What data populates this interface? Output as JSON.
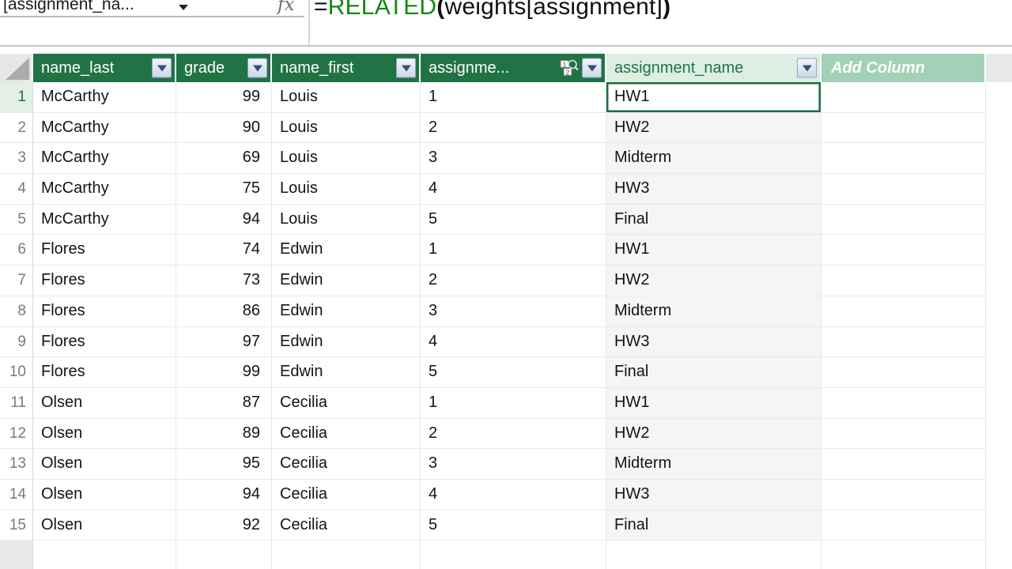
{
  "app": "Power Pivot data view",
  "colors": {
    "header_green": "#217346",
    "selected_header_bg": "#ddeee3",
    "add_column_green": "#a2d1b6",
    "function_name_green": "#108a10",
    "selection_border_green": "#1c6c40",
    "selected_rownum_bg": "#e2f0e8"
  },
  "formula_bar": {
    "name_box_value": "[assignment_na...",
    "fx_label": "fx",
    "formula": {
      "equals": "=",
      "function_name": "RELATED",
      "open_paren": "(",
      "argument": "weights[assignment]",
      "close_paren": ")"
    }
  },
  "table": {
    "columns": [
      {
        "label": "name_last",
        "has_filter": true
      },
      {
        "label": "grade",
        "has_filter": true
      },
      {
        "label": "name_first",
        "has_filter": true
      },
      {
        "label": "assignme...",
        "has_filter": true,
        "has_relationship_icon": true
      },
      {
        "label": "assignment_name",
        "has_filter": true,
        "selected": true
      },
      {
        "label": "Add Column",
        "has_filter": false
      }
    ],
    "icons": {
      "select_all": "select-all-triangle",
      "filter": "filter-dropdown-arrow",
      "relationship": "relationship-lookup-magnifier"
    },
    "selected": {
      "row_index": 0,
      "row_number": "1",
      "column": "assignment_name",
      "value": "HW1"
    },
    "rows": [
      {
        "num": "1",
        "name_last": "McCarthy",
        "grade": "99",
        "name_first": "Louis",
        "assignment": "1",
        "assignment_name": "HW1"
      },
      {
        "num": "2",
        "name_last": "McCarthy",
        "grade": "90",
        "name_first": "Louis",
        "assignment": "2",
        "assignment_name": "HW2"
      },
      {
        "num": "3",
        "name_last": "McCarthy",
        "grade": "69",
        "name_first": "Louis",
        "assignment": "3",
        "assignment_name": "Midterm"
      },
      {
        "num": "4",
        "name_last": "McCarthy",
        "grade": "75",
        "name_first": "Louis",
        "assignment": "4",
        "assignment_name": "HW3"
      },
      {
        "num": "5",
        "name_last": "McCarthy",
        "grade": "94",
        "name_first": "Louis",
        "assignment": "5",
        "assignment_name": "Final"
      },
      {
        "num": "6",
        "name_last": "Flores",
        "grade": "74",
        "name_first": "Edwin",
        "assignment": "1",
        "assignment_name": "HW1"
      },
      {
        "num": "7",
        "name_last": "Flores",
        "grade": "73",
        "name_first": "Edwin",
        "assignment": "2",
        "assignment_name": "HW2"
      },
      {
        "num": "8",
        "name_last": "Flores",
        "grade": "86",
        "name_first": "Edwin",
        "assignment": "3",
        "assignment_name": "Midterm"
      },
      {
        "num": "9",
        "name_last": "Flores",
        "grade": "97",
        "name_first": "Edwin",
        "assignment": "4",
        "assignment_name": "HW3"
      },
      {
        "num": "10",
        "name_last": "Flores",
        "grade": "99",
        "name_first": "Edwin",
        "assignment": "5",
        "assignment_name": "Final"
      },
      {
        "num": "11",
        "name_last": "Olsen",
        "grade": "87",
        "name_first": "Cecilia",
        "assignment": "1",
        "assignment_name": "HW1"
      },
      {
        "num": "12",
        "name_last": "Olsen",
        "grade": "89",
        "name_first": "Cecilia",
        "assignment": "2",
        "assignment_name": "HW2"
      },
      {
        "num": "13",
        "name_last": "Olsen",
        "grade": "95",
        "name_first": "Cecilia",
        "assignment": "3",
        "assignment_name": "Midterm"
      },
      {
        "num": "14",
        "name_last": "Olsen",
        "grade": "94",
        "name_first": "Cecilia",
        "assignment": "4",
        "assignment_name": "HW3"
      },
      {
        "num": "15",
        "name_last": "Olsen",
        "grade": "92",
        "name_first": "Cecilia",
        "assignment": "5",
        "assignment_name": "Final"
      }
    ]
  }
}
